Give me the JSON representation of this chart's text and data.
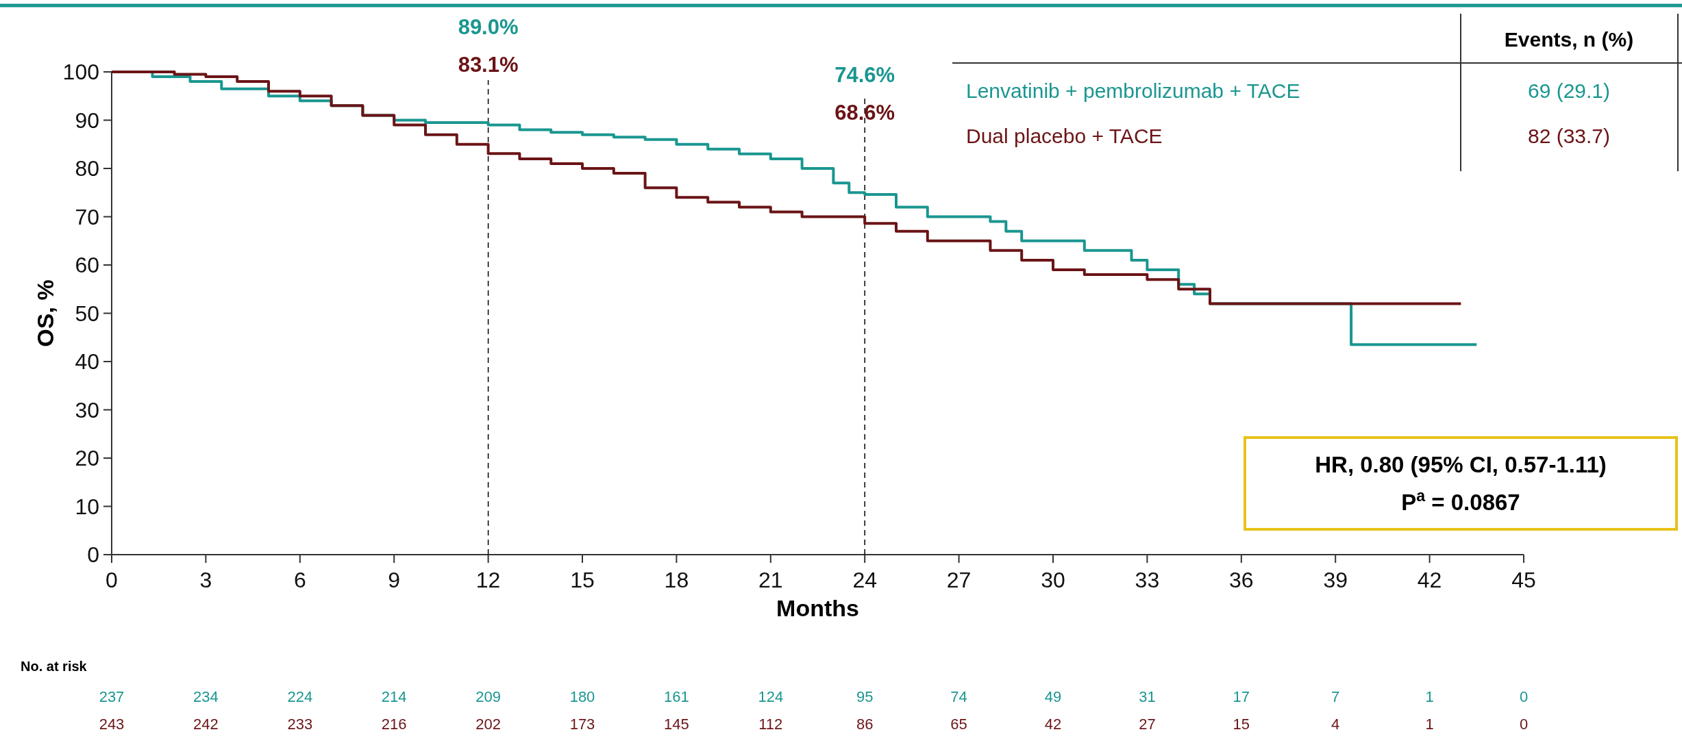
{
  "chart_data": {
    "type": "step",
    "xlabel": "Months",
    "ylabel": "OS, %",
    "legend_title": "Events, n (%)",
    "legend": "top right",
    "xlim": [
      0,
      45
    ],
    "xticks": [
      0,
      3,
      6,
      9,
      12,
      15,
      18,
      21,
      24,
      27,
      30,
      33,
      36,
      39,
      42,
      45
    ],
    "ylim": [
      0,
      100
    ],
    "yticks": [
      0,
      10,
      20,
      30,
      40,
      50,
      60,
      70,
      80,
      90,
      100
    ],
    "series": [
      {
        "name": "Lenvatinib + pembrolizumab + TACE",
        "color": "#1a9690",
        "x": [
          0,
          1.3,
          2.5,
          3.5,
          5,
          6,
          7,
          8,
          9,
          10,
          12,
          13,
          14,
          15,
          16,
          17,
          18,
          19,
          20,
          21,
          22,
          23,
          23.5,
          24,
          25,
          26,
          28,
          28.5,
          29,
          31,
          32.5,
          33,
          34,
          34.5,
          35,
          39.5,
          43.5
        ],
        "values": [
          100,
          99,
          98,
          96.5,
          95,
          94,
          93,
          91,
          90,
          89.5,
          89,
          88,
          87.5,
          87,
          86.5,
          86,
          85,
          84,
          83,
          82,
          80,
          77,
          75,
          74.6,
          72,
          70,
          69,
          67,
          65,
          63,
          61,
          59,
          56,
          54,
          52,
          43.5,
          43.5
        ]
      },
      {
        "name": "Dual placebo + TACE",
        "color": "#6b1416",
        "x": [
          0,
          2,
          3,
          4,
          5,
          6,
          7,
          8,
          9,
          10,
          11,
          12,
          13,
          14,
          15,
          16,
          17,
          18,
          19,
          20,
          21,
          22,
          24,
          25,
          26,
          28,
          29,
          30,
          31,
          33,
          34,
          35,
          43
        ],
        "values": [
          100,
          99.5,
          99,
          98,
          96,
          95,
          93,
          91,
          89,
          87,
          85,
          83.1,
          82,
          81,
          80,
          79,
          76,
          74,
          73,
          72,
          71,
          70,
          68.6,
          67,
          65,
          63,
          61,
          59,
          58,
          57,
          55,
          52,
          52
        ]
      }
    ],
    "ref_lines": [
      {
        "axis": "x",
        "value": 12,
        "line_style": "dashed",
        "color": "#000000"
      },
      {
        "axis": "x",
        "value": 24,
        "line_style": "dashed",
        "color": "#000000"
      }
    ],
    "annotations": [
      "89.0%",
      "83.1%",
      "74.6%",
      "68.6%",
      "HR, 0.80 (95% CI, 0.57-1.11)",
      "P$^{a}$ = 0.0867",
      "69 (29.1)",
      "82 (33.7)",
      "No. at risk",
      "237",
      "234",
      "224",
      "214",
      "209",
      "180",
      "161",
      "124",
      "95",
      "74",
      "49",
      "31",
      "17",
      "7",
      "1",
      "0",
      "243",
      "242",
      "233",
      "216",
      "202",
      "173",
      "145",
      "112",
      "86",
      "65",
      "42",
      "27",
      "15",
      "4",
      "1",
      "0"
    ]
  }
}
